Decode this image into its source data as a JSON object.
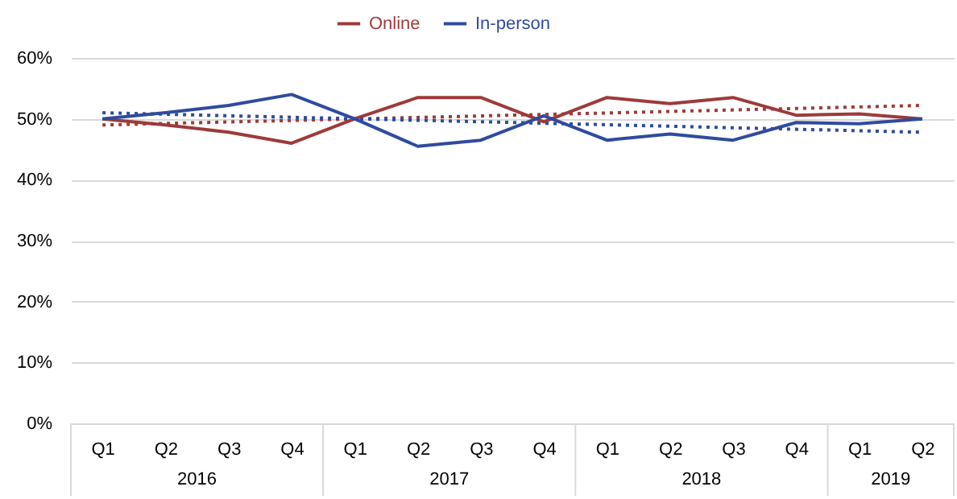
{
  "chart_data": {
    "type": "line",
    "categories": [
      "Q1",
      "Q2",
      "Q3",
      "Q4",
      "Q1",
      "Q2",
      "Q3",
      "Q4",
      "Q1",
      "Q2",
      "Q3",
      "Q4",
      "Q1",
      "Q2"
    ],
    "annotations": [
      "2016",
      "2017",
      "2018",
      "2019"
    ],
    "series": [
      {
        "name": "Online",
        "color": "#9e3a3a",
        "values": [
          50,
          49,
          47.8,
          46,
          50,
          53.5,
          53.5,
          49.5,
          53.5,
          52.5,
          53.5,
          50.6,
          50.8,
          50
        ]
      },
      {
        "name": "In-person",
        "color": "#2f4b9e",
        "values": [
          50,
          51,
          52.2,
          54,
          50,
          45.5,
          46.5,
          50.5,
          46.5,
          47.5,
          46.5,
          49.4,
          49.2,
          50
        ]
      },
      {
        "type": "line",
        "line_style": "dotted",
        "color": "#9e3a3a",
        "values": [
          49,
          null,
          null,
          null,
          null,
          null,
          null,
          null,
          null,
          null,
          null,
          null,
          null,
          52.2
        ]
      },
      {
        "type": "line",
        "line_style": "dotted",
        "color": "#2f4b9e",
        "values": [
          51,
          null,
          null,
          null,
          null,
          null,
          null,
          null,
          null,
          null,
          null,
          null,
          null,
          47.8
        ]
      }
    ],
    "ylim": [
      0,
      60
    ],
    "yticks": [
      {
        "value": 0,
        "label": "0%"
      },
      {
        "value": 10,
        "label": "10%"
      },
      {
        "value": 20,
        "label": "20%"
      },
      {
        "value": 30,
        "label": "30%"
      },
      {
        "value": 40,
        "label": "40%"
      },
      {
        "value": 50,
        "label": "50%"
      },
      {
        "value": 60,
        "label": "60%"
      }
    ],
    "grid": "y",
    "legend": "top",
    "line_style": "solid",
    "marker": "none"
  }
}
